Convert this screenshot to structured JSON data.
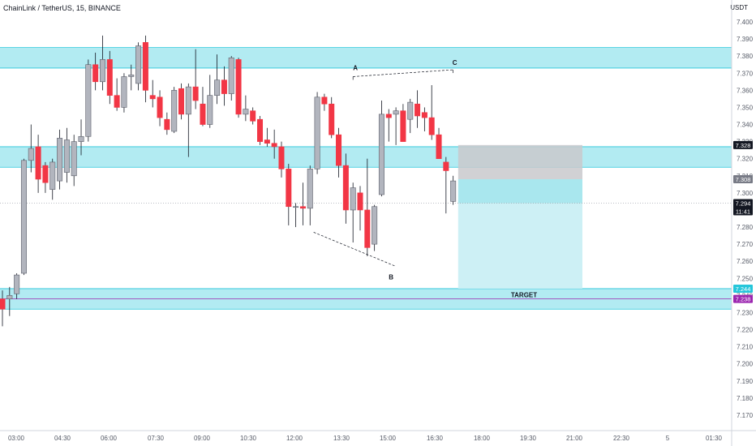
{
  "header": {
    "title": "ChainLink / TetherUS, 15, BINANCE",
    "unit": "USDT"
  },
  "chart_data": {
    "type": "candlestick",
    "y_ticks": [
      7.17,
      7.18,
      7.19,
      7.2,
      7.21,
      7.22,
      7.23,
      7.24,
      7.25,
      7.26,
      7.27,
      7.28,
      7.29,
      7.3,
      7.31,
      7.32,
      7.33,
      7.34,
      7.35,
      7.36,
      7.37,
      7.38,
      7.39,
      7.4
    ],
    "ylim": [
      7.165,
      7.405
    ],
    "x_ticks": [
      "03:00",
      "04:30",
      "06:00",
      "07:30",
      "09:00",
      "10:30",
      "12:00",
      "13:30",
      "15:00",
      "16:30",
      "18:00",
      "19:30",
      "21:00",
      "22:30",
      "5",
      "01:30"
    ],
    "candles": [
      {
        "o": 7.238,
        "h": 7.243,
        "l": 7.222,
        "c": 7.232
      },
      {
        "o": 7.238,
        "h": 7.245,
        "l": 7.228,
        "c": 7.24
      },
      {
        "o": 7.241,
        "h": 7.253,
        "l": 7.238,
        "c": 7.252
      },
      {
        "o": 7.253,
        "h": 7.32,
        "l": 7.252,
        "c": 7.319
      },
      {
        "o": 7.319,
        "h": 7.34,
        "l": 7.312,
        "c": 7.326
      },
      {
        "o": 7.327,
        "h": 7.334,
        "l": 7.3,
        "c": 7.308
      },
      {
        "o": 7.316,
        "h": 7.318,
        "l": 7.3,
        "c": 7.306
      },
      {
        "o": 7.302,
        "h": 7.32,
        "l": 7.296,
        "c": 7.318
      },
      {
        "o": 7.307,
        "h": 7.337,
        "l": 7.302,
        "c": 7.332
      },
      {
        "o": 7.312,
        "h": 7.338,
        "l": 7.306,
        "c": 7.331
      },
      {
        "o": 7.31,
        "h": 7.334,
        "l": 7.304,
        "c": 7.33
      },
      {
        "o": 7.33,
        "h": 7.343,
        "l": 7.322,
        "c": 7.333
      },
      {
        "o": 7.333,
        "h": 7.378,
        "l": 7.33,
        "c": 7.375
      },
      {
        "o": 7.375,
        "h": 7.382,
        "l": 7.36,
        "c": 7.365
      },
      {
        "o": 7.365,
        "h": 7.392,
        "l": 7.36,
        "c": 7.378
      },
      {
        "o": 7.378,
        "h": 7.383,
        "l": 7.352,
        "c": 7.357
      },
      {
        "o": 7.357,
        "h": 7.367,
        "l": 7.348,
        "c": 7.35
      },
      {
        "o": 7.35,
        "h": 7.37,
        "l": 7.347,
        "c": 7.368
      },
      {
        "o": 7.368,
        "h": 7.375,
        "l": 7.36,
        "c": 7.369
      },
      {
        "o": 7.364,
        "h": 7.388,
        "l": 7.36,
        "c": 7.386
      },
      {
        "o": 7.388,
        "h": 7.392,
        "l": 7.353,
        "c": 7.36
      },
      {
        "o": 7.357,
        "h": 7.366,
        "l": 7.35,
        "c": 7.355
      },
      {
        "o": 7.356,
        "h": 7.36,
        "l": 7.339,
        "c": 7.344
      },
      {
        "o": 7.343,
        "h": 7.347,
        "l": 7.334,
        "c": 7.337
      },
      {
        "o": 7.336,
        "h": 7.362,
        "l": 7.335,
        "c": 7.36
      },
      {
        "o": 7.361,
        "h": 7.364,
        "l": 7.343,
        "c": 7.346
      },
      {
        "o": 7.346,
        "h": 7.364,
        "l": 7.321,
        "c": 7.362
      },
      {
        "o": 7.362,
        "h": 7.384,
        "l": 7.349,
        "c": 7.354
      },
      {
        "o": 7.352,
        "h": 7.362,
        "l": 7.339,
        "c": 7.34
      },
      {
        "o": 7.34,
        "h": 7.369,
        "l": 7.338,
        "c": 7.357
      },
      {
        "o": 7.357,
        "h": 7.381,
        "l": 7.352,
        "c": 7.366
      },
      {
        "o": 7.366,
        "h": 7.374,
        "l": 7.351,
        "c": 7.358
      },
      {
        "o": 7.358,
        "h": 7.38,
        "l": 7.354,
        "c": 7.379
      },
      {
        "o": 7.378,
        "h": 7.379,
        "l": 7.344,
        "c": 7.346
      },
      {
        "o": 7.346,
        "h": 7.357,
        "l": 7.342,
        "c": 7.349
      },
      {
        "o": 7.348,
        "h": 7.35,
        "l": 7.34,
        "c": 7.342
      },
      {
        "o": 7.343,
        "h": 7.345,
        "l": 7.328,
        "c": 7.33
      },
      {
        "o": 7.331,
        "h": 7.338,
        "l": 7.327,
        "c": 7.329
      },
      {
        "o": 7.329,
        "h": 7.337,
        "l": 7.32,
        "c": 7.327
      },
      {
        "o": 7.327,
        "h": 7.33,
        "l": 7.309,
        "c": 7.314
      },
      {
        "o": 7.314,
        "h": 7.317,
        "l": 7.281,
        "c": 7.292
      },
      {
        "o": 7.292,
        "h": 7.294,
        "l": 7.28,
        "c": 7.292
      },
      {
        "o": 7.292,
        "h": 7.306,
        "l": 7.281,
        "c": 7.291
      },
      {
        "o": 7.291,
        "h": 7.316,
        "l": 7.281,
        "c": 7.314
      },
      {
        "o": 7.314,
        "h": 7.359,
        "l": 7.311,
        "c": 7.356
      },
      {
        "o": 7.356,
        "h": 7.358,
        "l": 7.348,
        "c": 7.352
      },
      {
        "o": 7.352,
        "h": 7.356,
        "l": 7.332,
        "c": 7.334
      },
      {
        "o": 7.334,
        "h": 7.338,
        "l": 7.309,
        "c": 7.316
      },
      {
        "o": 7.316,
        "h": 7.323,
        "l": 7.282,
        "c": 7.29
      },
      {
        "o": 7.29,
        "h": 7.306,
        "l": 7.271,
        "c": 7.303
      },
      {
        "o": 7.3,
        "h": 7.304,
        "l": 7.278,
        "c": 7.29
      },
      {
        "o": 7.29,
        "h": 7.32,
        "l": 7.263,
        "c": 7.268
      },
      {
        "o": 7.27,
        "h": 7.293,
        "l": 7.266,
        "c": 7.292
      },
      {
        "o": 7.299,
        "h": 7.354,
        "l": 7.298,
        "c": 7.346
      },
      {
        "o": 7.346,
        "h": 7.349,
        "l": 7.33,
        "c": 7.344
      },
      {
        "o": 7.346,
        "h": 7.35,
        "l": 7.328,
        "c": 7.348
      },
      {
        "o": 7.348,
        "h": 7.352,
        "l": 7.33,
        "c": 7.33
      },
      {
        "o": 7.343,
        "h": 7.355,
        "l": 7.335,
        "c": 7.353
      },
      {
        "o": 7.352,
        "h": 7.36,
        "l": 7.338,
        "c": 7.345
      },
      {
        "o": 7.347,
        "h": 7.35,
        "l": 7.336,
        "c": 7.344
      },
      {
        "o": 7.344,
        "h": 7.363,
        "l": 7.331,
        "c": 7.334
      },
      {
        "o": 7.334,
        "h": 7.338,
        "l": 7.32,
        "c": 7.32
      },
      {
        "o": 7.318,
        "h": 7.321,
        "l": 7.288,
        "c": 7.313
      },
      {
        "o": 7.295,
        "h": 7.31,
        "l": 7.293,
        "c": 7.307
      }
    ],
    "zones": [
      {
        "top": 7.385,
        "bottom": 7.373
      },
      {
        "top": 7.327,
        "bottom": 7.315
      },
      {
        "top": 7.244,
        "bottom": 7.232
      }
    ],
    "target_label": "TARGET",
    "target_price": 7.238,
    "current_price": 7.294,
    "current_countdown": "11:41",
    "position": {
      "entry": 7.308,
      "stop": 7.328,
      "target": 7.244
    },
    "pattern_labels": [
      "A",
      "B",
      "C"
    ],
    "price_tags": [
      {
        "text": "7.328",
        "value": 7.328,
        "color": "#131722"
      },
      {
        "text": "7.308",
        "value": 7.308,
        "color": "#787b86"
      },
      {
        "text": "7.294",
        "value": 7.294,
        "color": "#131722"
      },
      {
        "text": "7.244",
        "value": 7.244,
        "color": "#26c6da"
      },
      {
        "text": "7.238",
        "value": 7.238,
        "color": "#9c27b0"
      }
    ],
    "colors": {
      "up": "#b2b5be",
      "down": "#f23645",
      "wick": "#131722",
      "zone": "#b2ebf2",
      "zone_edge": "#26c6da",
      "stop_zone": "#c9c9cc",
      "target_zone": "#cdf0f5",
      "entry_zone": "#a9e7ee",
      "purple": "#9c27b0",
      "axis_text": "#555a66"
    }
  }
}
